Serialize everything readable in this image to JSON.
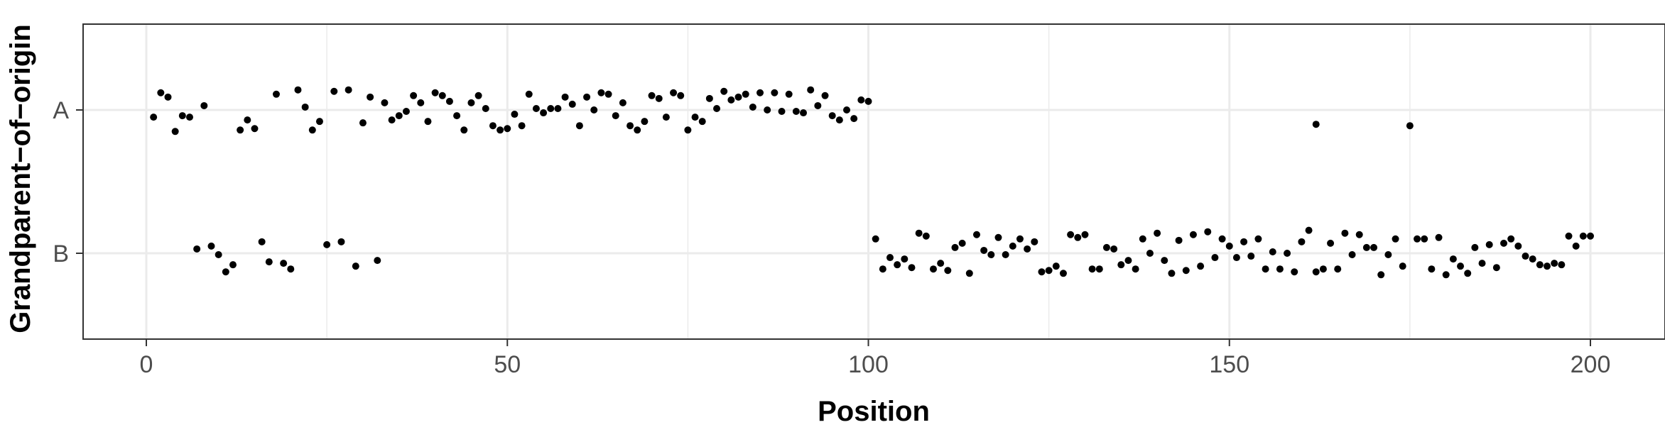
{
  "chart_data": {
    "type": "scatter",
    "title": "",
    "xlabel": "Position",
    "ylabel": "Grandparent−of−origin",
    "xlim": [
      -9,
      210
    ],
    "x_ticks": [
      "0",
      "50",
      "100",
      "150",
      "200"
    ],
    "y_categories": [
      "B",
      "A"
    ],
    "grid": true,
    "point_color": "#000000",
    "points": [
      {
        "x": 1,
        "y": "A",
        "jitter": -0.05
      },
      {
        "x": 2,
        "y": "A",
        "jitter": 0.12
      },
      {
        "x": 3,
        "y": "A",
        "jitter": 0.09
      },
      {
        "x": 4,
        "y": "A",
        "jitter": -0.15
      },
      {
        "x": 5,
        "y": "A",
        "jitter": -0.04
      },
      {
        "x": 6,
        "y": "A",
        "jitter": -0.05
      },
      {
        "x": 7,
        "y": "B",
        "jitter": 0.03
      },
      {
        "x": 8,
        "y": "A",
        "jitter": 0.03
      },
      {
        "x": 9,
        "y": "B",
        "jitter": 0.05
      },
      {
        "x": 10,
        "y": "B",
        "jitter": -0.01
      },
      {
        "x": 11,
        "y": "B",
        "jitter": -0.13
      },
      {
        "x": 12,
        "y": "B",
        "jitter": -0.08
      },
      {
        "x": 13,
        "y": "A",
        "jitter": -0.14
      },
      {
        "x": 14,
        "y": "A",
        "jitter": -0.07
      },
      {
        "x": 15,
        "y": "A",
        "jitter": -0.13
      },
      {
        "x": 16,
        "y": "B",
        "jitter": 0.08
      },
      {
        "x": 17,
        "y": "B",
        "jitter": -0.06
      },
      {
        "x": 18,
        "y": "A",
        "jitter": 0.11
      },
      {
        "x": 19,
        "y": "B",
        "jitter": -0.07
      },
      {
        "x": 20,
        "y": "B",
        "jitter": -0.11
      },
      {
        "x": 21,
        "y": "A",
        "jitter": 0.14
      },
      {
        "x": 22,
        "y": "A",
        "jitter": 0.02
      },
      {
        "x": 23,
        "y": "A",
        "jitter": -0.14
      },
      {
        "x": 24,
        "y": "A",
        "jitter": -0.08
      },
      {
        "x": 25,
        "y": "B",
        "jitter": 0.06
      },
      {
        "x": 26,
        "y": "A",
        "jitter": 0.13
      },
      {
        "x": 27,
        "y": "B",
        "jitter": 0.08
      },
      {
        "x": 28,
        "y": "A",
        "jitter": 0.14
      },
      {
        "x": 29,
        "y": "B",
        "jitter": -0.09
      },
      {
        "x": 30,
        "y": "A",
        "jitter": -0.09
      },
      {
        "x": 31,
        "y": "A",
        "jitter": 0.09
      },
      {
        "x": 32,
        "y": "B",
        "jitter": -0.05
      },
      {
        "x": 33,
        "y": "A",
        "jitter": 0.05
      },
      {
        "x": 34,
        "y": "A",
        "jitter": -0.07
      },
      {
        "x": 35,
        "y": "A",
        "jitter": -0.04
      },
      {
        "x": 36,
        "y": "A",
        "jitter": -0.01
      },
      {
        "x": 37,
        "y": "A",
        "jitter": 0.1
      },
      {
        "x": 38,
        "y": "A",
        "jitter": 0.05
      },
      {
        "x": 39,
        "y": "A",
        "jitter": -0.08
      },
      {
        "x": 40,
        "y": "A",
        "jitter": 0.12
      },
      {
        "x": 41,
        "y": "A",
        "jitter": 0.1
      },
      {
        "x": 42,
        "y": "A",
        "jitter": 0.06
      },
      {
        "x": 43,
        "y": "A",
        "jitter": -0.04
      },
      {
        "x": 44,
        "y": "A",
        "jitter": -0.14
      },
      {
        "x": 45,
        "y": "A",
        "jitter": 0.05
      },
      {
        "x": 46,
        "y": "A",
        "jitter": 0.1
      },
      {
        "x": 47,
        "y": "A",
        "jitter": 0.01
      },
      {
        "x": 48,
        "y": "A",
        "jitter": -0.11
      },
      {
        "x": 49,
        "y": "A",
        "jitter": -0.14
      },
      {
        "x": 50,
        "y": "A",
        "jitter": -0.13
      },
      {
        "x": 51,
        "y": "A",
        "jitter": -0.03
      },
      {
        "x": 52,
        "y": "A",
        "jitter": -0.11
      },
      {
        "x": 53,
        "y": "A",
        "jitter": 0.11
      },
      {
        "x": 54,
        "y": "A",
        "jitter": 0.01
      },
      {
        "x": 55,
        "y": "A",
        "jitter": -0.02
      },
      {
        "x": 56,
        "y": "A",
        "jitter": 0.01
      },
      {
        "x": 57,
        "y": "A",
        "jitter": 0.01
      },
      {
        "x": 58,
        "y": "A",
        "jitter": 0.09
      },
      {
        "x": 59,
        "y": "A",
        "jitter": 0.04
      },
      {
        "x": 60,
        "y": "A",
        "jitter": -0.11
      },
      {
        "x": 61,
        "y": "A",
        "jitter": 0.09
      },
      {
        "x": 62,
        "y": "A",
        "jitter": 0.0
      },
      {
        "x": 63,
        "y": "A",
        "jitter": 0.12
      },
      {
        "x": 64,
        "y": "A",
        "jitter": 0.11
      },
      {
        "x": 65,
        "y": "A",
        "jitter": -0.04
      },
      {
        "x": 66,
        "y": "A",
        "jitter": 0.05
      },
      {
        "x": 67,
        "y": "A",
        "jitter": -0.11
      },
      {
        "x": 68,
        "y": "A",
        "jitter": -0.14
      },
      {
        "x": 69,
        "y": "A",
        "jitter": -0.08
      },
      {
        "x": 70,
        "y": "A",
        "jitter": 0.1
      },
      {
        "x": 71,
        "y": "A",
        "jitter": 0.08
      },
      {
        "x": 72,
        "y": "A",
        "jitter": -0.05
      },
      {
        "x": 73,
        "y": "A",
        "jitter": 0.12
      },
      {
        "x": 74,
        "y": "A",
        "jitter": 0.1
      },
      {
        "x": 75,
        "y": "A",
        "jitter": -0.14
      },
      {
        "x": 76,
        "y": "A",
        "jitter": -0.05
      },
      {
        "x": 77,
        "y": "A",
        "jitter": -0.08
      },
      {
        "x": 78,
        "y": "A",
        "jitter": 0.08
      },
      {
        "x": 79,
        "y": "A",
        "jitter": 0.01
      },
      {
        "x": 80,
        "y": "A",
        "jitter": 0.13
      },
      {
        "x": 81,
        "y": "A",
        "jitter": 0.07
      },
      {
        "x": 82,
        "y": "A",
        "jitter": 0.09
      },
      {
        "x": 83,
        "y": "A",
        "jitter": 0.11
      },
      {
        "x": 84,
        "y": "A",
        "jitter": 0.02
      },
      {
        "x": 85,
        "y": "A",
        "jitter": 0.12
      },
      {
        "x": 86,
        "y": "A",
        "jitter": 0.0
      },
      {
        "x": 87,
        "y": "A",
        "jitter": 0.12
      },
      {
        "x": 88,
        "y": "A",
        "jitter": -0.01
      },
      {
        "x": 89,
        "y": "A",
        "jitter": 0.11
      },
      {
        "x": 90,
        "y": "A",
        "jitter": -0.01
      },
      {
        "x": 91,
        "y": "A",
        "jitter": -0.02
      },
      {
        "x": 92,
        "y": "A",
        "jitter": 0.14
      },
      {
        "x": 93,
        "y": "A",
        "jitter": 0.03
      },
      {
        "x": 94,
        "y": "A",
        "jitter": 0.1
      },
      {
        "x": 95,
        "y": "A",
        "jitter": -0.04
      },
      {
        "x": 96,
        "y": "A",
        "jitter": -0.07
      },
      {
        "x": 97,
        "y": "A",
        "jitter": 0.0
      },
      {
        "x": 98,
        "y": "A",
        "jitter": -0.06
      },
      {
        "x": 99,
        "y": "A",
        "jitter": 0.07
      },
      {
        "x": 100,
        "y": "A",
        "jitter": 0.06
      },
      {
        "x": 101,
        "y": "B",
        "jitter": 0.1
      },
      {
        "x": 102,
        "y": "B",
        "jitter": -0.11
      },
      {
        "x": 103,
        "y": "B",
        "jitter": -0.03
      },
      {
        "x": 104,
        "y": "B",
        "jitter": -0.08
      },
      {
        "x": 105,
        "y": "B",
        "jitter": -0.04
      },
      {
        "x": 106,
        "y": "B",
        "jitter": -0.1
      },
      {
        "x": 107,
        "y": "B",
        "jitter": 0.14
      },
      {
        "x": 108,
        "y": "B",
        "jitter": 0.12
      },
      {
        "x": 109,
        "y": "B",
        "jitter": -0.11
      },
      {
        "x": 110,
        "y": "B",
        "jitter": -0.07
      },
      {
        "x": 111,
        "y": "B",
        "jitter": -0.12
      },
      {
        "x": 112,
        "y": "B",
        "jitter": 0.04
      },
      {
        "x": 113,
        "y": "B",
        "jitter": 0.07
      },
      {
        "x": 114,
        "y": "B",
        "jitter": -0.14
      },
      {
        "x": 115,
        "y": "B",
        "jitter": 0.13
      },
      {
        "x": 116,
        "y": "B",
        "jitter": 0.02
      },
      {
        "x": 117,
        "y": "B",
        "jitter": -0.01
      },
      {
        "x": 118,
        "y": "B",
        "jitter": 0.11
      },
      {
        "x": 119,
        "y": "B",
        "jitter": -0.01
      },
      {
        "x": 120,
        "y": "B",
        "jitter": 0.05
      },
      {
        "x": 121,
        "y": "B",
        "jitter": 0.1
      },
      {
        "x": 122,
        "y": "B",
        "jitter": 0.03
      },
      {
        "x": 123,
        "y": "B",
        "jitter": 0.08
      },
      {
        "x": 124,
        "y": "B",
        "jitter": -0.13
      },
      {
        "x": 125,
        "y": "B",
        "jitter": -0.12
      },
      {
        "x": 126,
        "y": "B",
        "jitter": -0.09
      },
      {
        "x": 127,
        "y": "B",
        "jitter": -0.14
      },
      {
        "x": 128,
        "y": "B",
        "jitter": 0.13
      },
      {
        "x": 129,
        "y": "B",
        "jitter": 0.11
      },
      {
        "x": 130,
        "y": "B",
        "jitter": 0.13
      },
      {
        "x": 131,
        "y": "B",
        "jitter": -0.11
      },
      {
        "x": 132,
        "y": "B",
        "jitter": -0.11
      },
      {
        "x": 133,
        "y": "B",
        "jitter": 0.04
      },
      {
        "x": 134,
        "y": "B",
        "jitter": 0.03
      },
      {
        "x": 135,
        "y": "B",
        "jitter": -0.08
      },
      {
        "x": 136,
        "y": "B",
        "jitter": -0.05
      },
      {
        "x": 137,
        "y": "B",
        "jitter": -0.11
      },
      {
        "x": 138,
        "y": "B",
        "jitter": 0.1
      },
      {
        "x": 139,
        "y": "B",
        "jitter": 0.0
      },
      {
        "x": 140,
        "y": "B",
        "jitter": 0.14
      },
      {
        "x": 141,
        "y": "B",
        "jitter": -0.05
      },
      {
        "x": 142,
        "y": "B",
        "jitter": -0.14
      },
      {
        "x": 143,
        "y": "B",
        "jitter": 0.09
      },
      {
        "x": 144,
        "y": "B",
        "jitter": -0.12
      },
      {
        "x": 145,
        "y": "B",
        "jitter": 0.13
      },
      {
        "x": 146,
        "y": "B",
        "jitter": -0.09
      },
      {
        "x": 147,
        "y": "B",
        "jitter": 0.15
      },
      {
        "x": 148,
        "y": "B",
        "jitter": -0.03
      },
      {
        "x": 149,
        "y": "B",
        "jitter": 0.1
      },
      {
        "x": 150,
        "y": "B",
        "jitter": 0.05
      },
      {
        "x": 151,
        "y": "B",
        "jitter": -0.03
      },
      {
        "x": 152,
        "y": "B",
        "jitter": 0.08
      },
      {
        "x": 153,
        "y": "B",
        "jitter": -0.02
      },
      {
        "x": 154,
        "y": "B",
        "jitter": 0.1
      },
      {
        "x": 155,
        "y": "B",
        "jitter": -0.11
      },
      {
        "x": 156,
        "y": "B",
        "jitter": 0.01
      },
      {
        "x": 157,
        "y": "B",
        "jitter": -0.11
      },
      {
        "x": 158,
        "y": "B",
        "jitter": 0.0
      },
      {
        "x": 159,
        "y": "B",
        "jitter": -0.13
      },
      {
        "x": 160,
        "y": "B",
        "jitter": 0.08
      },
      {
        "x": 161,
        "y": "B",
        "jitter": 0.16
      },
      {
        "x": 162,
        "y": "B",
        "jitter": -0.13
      },
      {
        "x": 162,
        "y": "A",
        "jitter": -0.1
      },
      {
        "x": 163,
        "y": "B",
        "jitter": -0.11
      },
      {
        "x": 164,
        "y": "B",
        "jitter": 0.07
      },
      {
        "x": 165,
        "y": "B",
        "jitter": -0.11
      },
      {
        "x": 166,
        "y": "B",
        "jitter": 0.14
      },
      {
        "x": 167,
        "y": "B",
        "jitter": -0.01
      },
      {
        "x": 168,
        "y": "B",
        "jitter": 0.13
      },
      {
        "x": 169,
        "y": "B",
        "jitter": 0.04
      },
      {
        "x": 170,
        "y": "B",
        "jitter": 0.04
      },
      {
        "x": 171,
        "y": "B",
        "jitter": -0.15
      },
      {
        "x": 172,
        "y": "B",
        "jitter": -0.01
      },
      {
        "x": 173,
        "y": "B",
        "jitter": 0.1
      },
      {
        "x": 174,
        "y": "B",
        "jitter": -0.09
      },
      {
        "x": 175,
        "y": "A",
        "jitter": -0.11
      },
      {
        "x": 176,
        "y": "B",
        "jitter": 0.1
      },
      {
        "x": 177,
        "y": "B",
        "jitter": 0.1
      },
      {
        "x": 178,
        "y": "B",
        "jitter": -0.11
      },
      {
        "x": 179,
        "y": "B",
        "jitter": 0.11
      },
      {
        "x": 180,
        "y": "B",
        "jitter": -0.15
      },
      {
        "x": 181,
        "y": "B",
        "jitter": -0.04
      },
      {
        "x": 182,
        "y": "B",
        "jitter": -0.09
      },
      {
        "x": 183,
        "y": "B",
        "jitter": -0.14
      },
      {
        "x": 184,
        "y": "B",
        "jitter": 0.04
      },
      {
        "x": 185,
        "y": "B",
        "jitter": -0.07
      },
      {
        "x": 186,
        "y": "B",
        "jitter": 0.06
      },
      {
        "x": 187,
        "y": "B",
        "jitter": -0.1
      },
      {
        "x": 188,
        "y": "B",
        "jitter": 0.07
      },
      {
        "x": 189,
        "y": "B",
        "jitter": 0.1
      },
      {
        "x": 190,
        "y": "B",
        "jitter": 0.05
      },
      {
        "x": 191,
        "y": "B",
        "jitter": -0.02
      },
      {
        "x": 192,
        "y": "B",
        "jitter": -0.04
      },
      {
        "x": 193,
        "y": "B",
        "jitter": -0.08
      },
      {
        "x": 194,
        "y": "B",
        "jitter": -0.09
      },
      {
        "x": 195,
        "y": "B",
        "jitter": -0.07
      },
      {
        "x": 196,
        "y": "B",
        "jitter": -0.08
      },
      {
        "x": 197,
        "y": "B",
        "jitter": 0.12
      },
      {
        "x": 198,
        "y": "B",
        "jitter": 0.05
      },
      {
        "x": 199,
        "y": "B",
        "jitter": 0.12
      },
      {
        "x": 200,
        "y": "B",
        "jitter": 0.12
      }
    ]
  }
}
